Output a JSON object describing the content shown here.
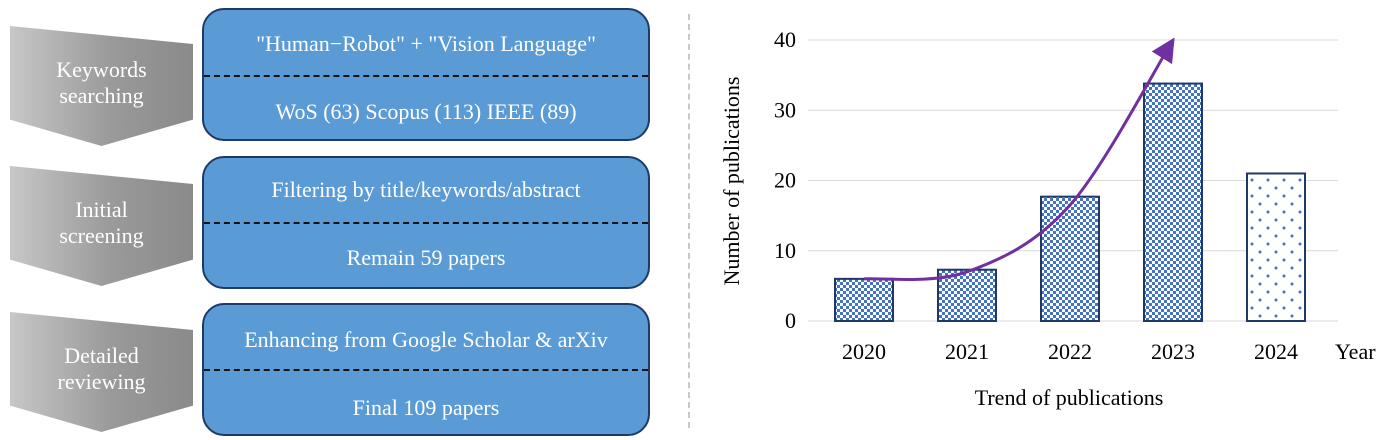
{
  "pipeline": {
    "stages": [
      {
        "chevron": [
          "Keywords",
          "searching"
        ],
        "top": "\"Human−Robot\" + \"Vision Language\"",
        "bottom": "WoS (63)  Scopus (113)  IEEE (89)"
      },
      {
        "chevron": [
          "Initial",
          "screening"
        ],
        "top": "Filtering by title/keywords/abstract",
        "bottom": "Remain 59 papers"
      },
      {
        "chevron": [
          "Detailed",
          "reviewing"
        ],
        "top": "Enhancing from Google Scholar & arXiv",
        "bottom": "Final 109 papers"
      }
    ]
  },
  "colors": {
    "stage_box": "#5b9bd5",
    "stage_border": "#1f3a66",
    "bar_pattern": "#4472c4",
    "bar_border": "#1f3864",
    "trend_arrow": "#7030a0"
  },
  "chart_data": {
    "type": "bar",
    "categories": [
      "2020",
      "2021",
      "2022",
      "2023",
      "2024"
    ],
    "values": [
      6,
      7.3,
      17.7,
      33.8,
      21
    ],
    "xlabel": "Year",
    "ylabel": "Number of publications",
    "caption": "Trend of publications",
    "ylim": [
      0,
      40
    ],
    "yticks": [
      0,
      10,
      20,
      30,
      40
    ],
    "grid": "horizontal",
    "bar_fill": [
      "crosshatch",
      "crosshatch",
      "crosshatch",
      "crosshatch",
      "sparse-dots"
    ],
    "trend_arrow": {
      "points": [
        [
          2020,
          6
        ],
        [
          2021,
          7
        ],
        [
          2022,
          16.5
        ],
        [
          2023,
          40
        ]
      ]
    }
  }
}
